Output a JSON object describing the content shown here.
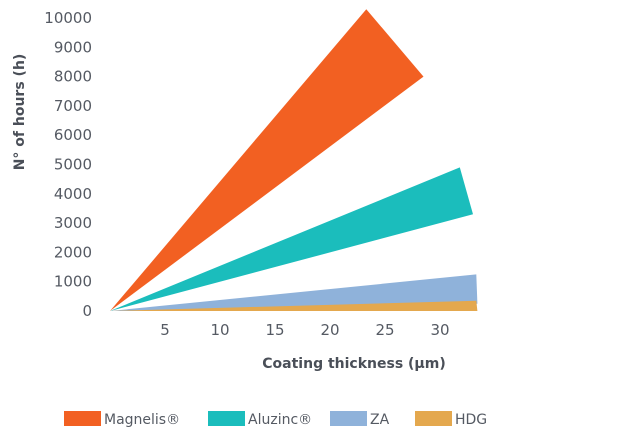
{
  "chart_data": {
    "type": "area",
    "title": "",
    "xlabel": "Coating thickness (µm)",
    "ylabel": "N° of hours (h)",
    "xlim": [
      0,
      35
    ],
    "ylim": [
      0,
      10000
    ],
    "x_ticks": [
      5,
      10,
      15,
      20,
      25,
      30
    ],
    "y_ticks": [
      0,
      1000,
      2000,
      3000,
      4000,
      5000,
      6000,
      7000,
      8000,
      9000,
      10000
    ],
    "grid": false,
    "legend_position": "bottom",
    "series": [
      {
        "name": "Magnelis®",
        "color": "#f26022",
        "points": [
          [
            0,
            0
          ],
          [
            23.3,
            10300
          ],
          [
            28.5,
            8000
          ]
        ]
      },
      {
        "name": "Aluzinc®",
        "color": "#1bbdbc",
        "points": [
          [
            0,
            0
          ],
          [
            31.8,
            4900
          ],
          [
            33,
            3300
          ]
        ]
      },
      {
        "name": "ZA",
        "color": "#8fb2da",
        "points": [
          [
            0,
            0
          ],
          [
            33.3,
            1250
          ],
          [
            33.4,
            250
          ]
        ]
      },
      {
        "name": "HDG",
        "color": "#e4a84e",
        "points": [
          [
            0,
            0
          ],
          [
            33.3,
            350
          ],
          [
            33.4,
            0
          ]
        ]
      }
    ]
  }
}
